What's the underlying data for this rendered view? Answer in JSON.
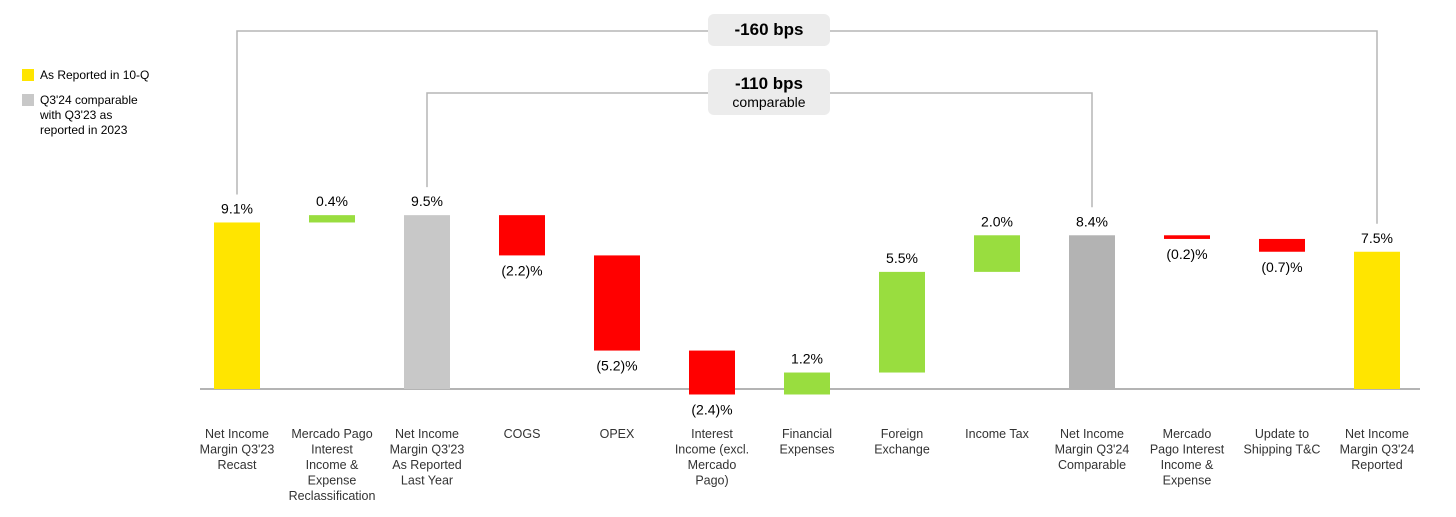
{
  "legend": [
    {
      "label": "As Reported in 10-Q",
      "color": "#FFE500"
    },
    {
      "label": "Q3'24 comparable with Q3'23 as reported in 2023",
      "color": "#C8C8C8"
    }
  ],
  "brackets": {
    "outer": {
      "label": "-160 bps"
    },
    "inner": {
      "label": "-110 bps",
      "sublabel": "comparable"
    }
  },
  "colors": {
    "reported": "#FFE500",
    "comparable_reported": "#C8C8C8",
    "comparable": "#B3B3B3",
    "increase": "#99DD3F",
    "decrease": "#FF0000"
  },
  "chart_data": {
    "type": "bar",
    "subtype": "waterfall",
    "categories": [
      "Net Income Margin Q3'23 Recast",
      "Mercado Pago Interest Income & Expense Reclassification",
      "Net Income Margin Q3'23 As Reported Last Year",
      "COGS",
      "OPEX",
      "Interest Income (excl. Mercado Pago)",
      "Financial Expenses",
      "Foreign Exchange",
      "Income Tax",
      "Net Income Margin Q3'24 Comparable",
      "Mercado Pago Interest Income & Expense",
      "Update to Shipping T&C",
      "Net Income Margin Q3'24 Reported"
    ],
    "category_lines": [
      [
        "Net Income",
        "Margin Q3'23",
        "Recast"
      ],
      [
        "Mercado Pago",
        "Interest",
        "Income &",
        "Expense",
        "Reclassification"
      ],
      [
        "Net Income",
        "Margin Q3'23",
        "As Reported",
        "Last Year"
      ],
      [
        "COGS"
      ],
      [
        "OPEX"
      ],
      [
        "Interest",
        "Income (excl.",
        "Mercado",
        "Pago)"
      ],
      [
        "Financial",
        "Expenses"
      ],
      [
        "Foreign",
        "Exchange"
      ],
      [
        "Income Tax"
      ],
      [
        "Net Income",
        "Margin Q3'24",
        "Comparable"
      ],
      [
        "Mercado",
        "Pago Interest",
        "Income &",
        "Expense"
      ],
      [
        "Update to",
        "Shipping T&C"
      ],
      [
        "Net Income",
        "Margin Q3'24",
        "Reported"
      ]
    ],
    "values": [
      9.1,
      0.4,
      9.5,
      -2.2,
      -5.2,
      -2.4,
      1.2,
      5.5,
      2.0,
      8.4,
      -0.2,
      -0.7,
      7.5
    ],
    "kinds": [
      "reported",
      "increase",
      "comparable_reported",
      "decrease",
      "decrease",
      "decrease",
      "increase",
      "increase",
      "increase",
      "comparable",
      "decrease",
      "decrease",
      "reported"
    ],
    "value_labels": [
      "9.1%",
      "0.4%",
      "9.5%",
      "(2.2)%",
      "(5.2)%",
      "(2.4)%",
      "1.2%",
      "5.5%",
      "2.0%",
      "8.4%",
      "(0.2)%",
      "(0.7)%",
      "7.5%"
    ],
    "unit": "%"
  }
}
